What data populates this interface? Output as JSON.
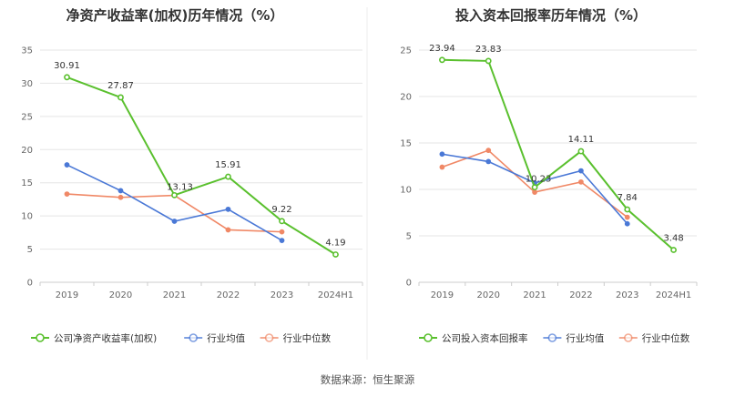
{
  "source_note": "数据来源：恒生聚源",
  "colors": {
    "company": "#5ac02e",
    "industry_avg": "#4a78d6",
    "industry_median": "#f08866",
    "grid": "#e5e5e5",
    "axis": "#cccccc",
    "divider": "#eeeeee"
  },
  "chart_data": [
    {
      "type": "line",
      "title": "净资产收益率(加权)历年情况（%）",
      "categories": [
        "2019",
        "2020",
        "2021",
        "2022",
        "2023",
        "2024H1"
      ],
      "ylim": [
        0,
        35
      ],
      "yticks": [
        0,
        5,
        10,
        15,
        20,
        25,
        30,
        35
      ],
      "series": [
        {
          "name": "公司净资产收益率(加权)",
          "key": "company",
          "values": [
            30.91,
            27.87,
            13.13,
            15.91,
            9.22,
            4.19
          ],
          "labeled": true
        },
        {
          "name": "行业均值",
          "key": "industry_avg",
          "values": [
            17.7,
            13.8,
            9.2,
            11.0,
            6.3,
            null
          ],
          "labeled": false
        },
        {
          "name": "行业中位数",
          "key": "industry_median",
          "values": [
            13.3,
            12.8,
            13.1,
            7.9,
            7.6,
            null
          ],
          "labeled": false
        }
      ]
    },
    {
      "type": "line",
      "title": "投入资本回报率历年情况（%）",
      "categories": [
        "2019",
        "2020",
        "2021",
        "2022",
        "2023",
        "2024H1"
      ],
      "ylim": [
        0,
        25
      ],
      "yticks": [
        0,
        5,
        10,
        15,
        20,
        25
      ],
      "series": [
        {
          "name": "公司投入资本回报率",
          "key": "company",
          "values": [
            23.94,
            23.83,
            10.23,
            14.11,
            7.84,
            3.48
          ],
          "labeled": true
        },
        {
          "name": "行业均值",
          "key": "industry_avg",
          "values": [
            13.8,
            13.0,
            10.7,
            12.0,
            6.3,
            null
          ],
          "labeled": false
        },
        {
          "name": "行业中位数",
          "key": "industry_median",
          "values": [
            12.4,
            14.2,
            9.7,
            10.8,
            7.0,
            null
          ],
          "labeled": false
        }
      ]
    }
  ]
}
